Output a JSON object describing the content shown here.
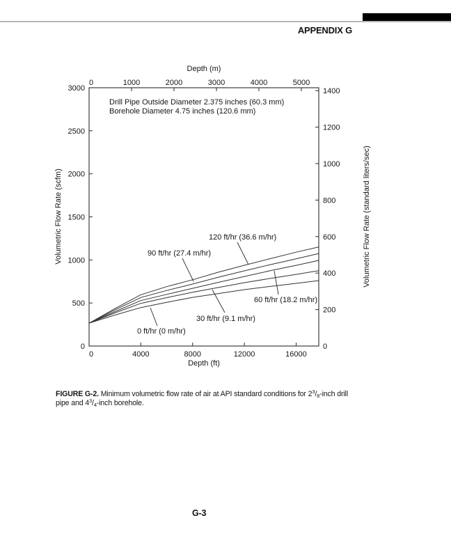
{
  "page": {
    "appendix_title": "APPENDIX G",
    "page_number": "G-3"
  },
  "caption": {
    "label": "FIGURE G-2.",
    "part1": "  Minimum volumetric flow rate of air at API standard conditions for 2",
    "frac1_sup": "3",
    "frac1_slash": "/",
    "frac1_sub": "8",
    "part2": "-inch drill",
    "part3": "pipe and 4",
    "frac2_sup": "3",
    "frac2_slash": "/",
    "frac2_sub": "4",
    "part4": "-inch borehole."
  },
  "chart_data": {
    "type": "line",
    "title": "",
    "annotations": [
      "Drill Pipe Outside Diameter 2.375 inches (60.3 mm)",
      "Borehole Diameter 4.75 inches (120.6 mm)"
    ],
    "x_bottom": {
      "label": "Depth (ft)",
      "ticks": [
        0,
        4000,
        8000,
        12000,
        16000
      ],
      "range": [
        0,
        17750
      ]
    },
    "x_top": {
      "label": "Depth (m)",
      "ticks": [
        0,
        1000,
        2000,
        3000,
        4000,
        5000
      ],
      "range": [
        0,
        5410
      ]
    },
    "y_left": {
      "label": "Volumetric Flow Rate (scfm)",
      "ticks": [
        0,
        500,
        1000,
        1500,
        2000,
        2500,
        3000
      ],
      "range": [
        0,
        3000
      ]
    },
    "y_right": {
      "label": "Volumetric Flow Rate (standard liters/sec)",
      "ticks": [
        0,
        200,
        400,
        600,
        800,
        1000,
        1200,
        1400
      ],
      "range": [
        0,
        1416
      ]
    },
    "grid": false,
    "x_ft": [
      0,
      2000,
      4000,
      6000,
      8000,
      10000,
      12000,
      14000,
      16000,
      17750
    ],
    "series": [
      {
        "name": "120 ft/hr (36.6 m/hr)",
        "values": [
          265,
          435,
          596,
          690,
          770,
          858,
          938,
          1015,
          1090,
          1150
        ]
      },
      {
        "name": "90 ft/hr (27.4 m/hr)",
        "values": [
          265,
          420,
          564,
          645,
          720,
          800,
          873,
          945,
          1012,
          1075
        ]
      },
      {
        "name": "60 ft/hr (18.2 m/hr)",
        "values": [
          265,
          400,
          528,
          600,
          670,
          740,
          808,
          875,
          937,
          995
        ]
      },
      {
        "name": "30 ft/hr (9.1 m/hr)",
        "values": [
          265,
          385,
          496,
          562,
          625,
          680,
          736,
          785,
          832,
          875
        ]
      },
      {
        "name": "0 ft/hr (0 m/hr)",
        "values": [
          265,
          360,
          447,
          508,
          565,
          610,
          655,
          692,
          728,
          760
        ]
      }
    ],
    "units": {
      "left": "scfm",
      "right": "standard liters/sec",
      "bottom": "ft",
      "top": "m"
    }
  }
}
